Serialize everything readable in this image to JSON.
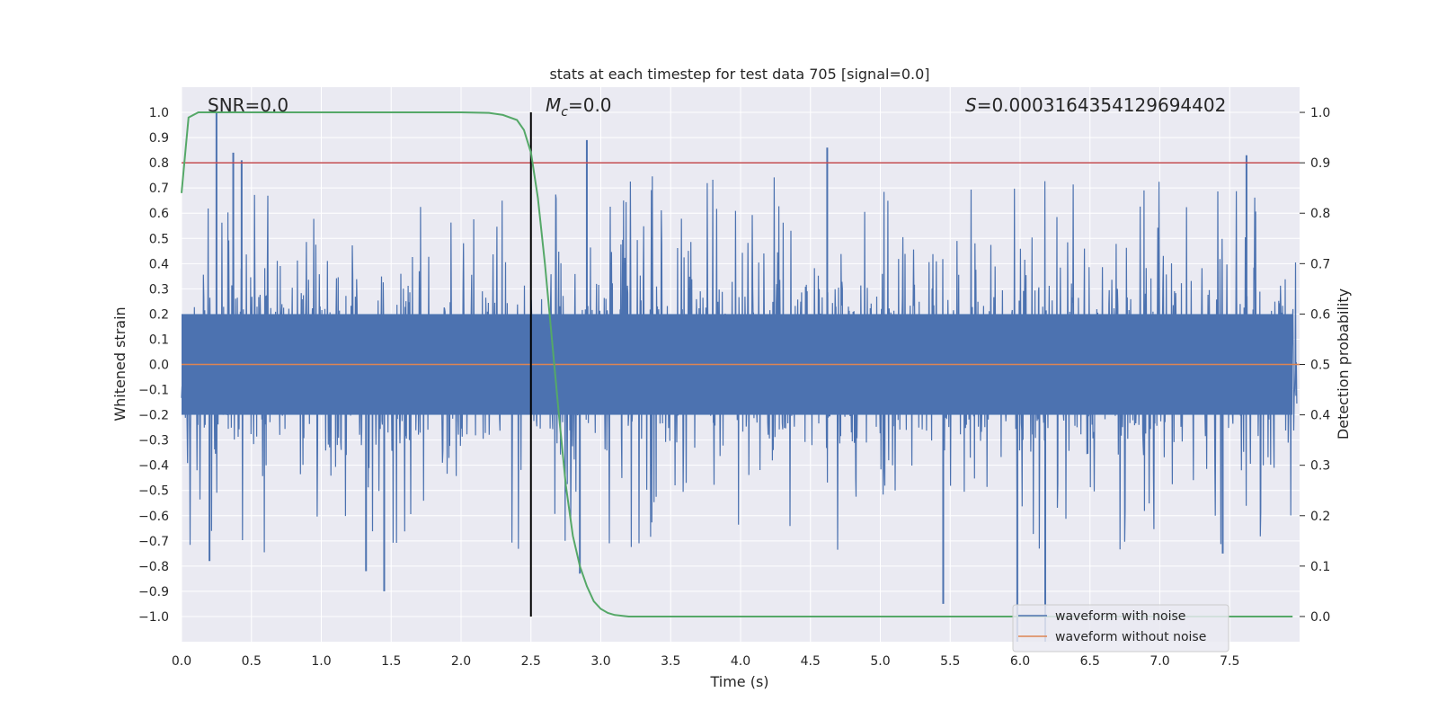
{
  "chart_data": {
    "type": "line",
    "title": "stats at each timestep for test data 705 [signal=0.0]",
    "xlabel": "Time (s)",
    "ylabel": "Whitened strain",
    "y2label": "Detection probability",
    "xlim": [
      0.0,
      8.0
    ],
    "ylim": [
      -1.1,
      1.1
    ],
    "y2lim": [
      -0.05,
      1.05
    ],
    "xticks": [
      "0.0",
      "0.5",
      "1.0",
      "1.5",
      "2.0",
      "2.5",
      "3.0",
      "3.5",
      "4.0",
      "4.5",
      "5.0",
      "5.5",
      "6.0",
      "6.5",
      "7.0",
      "7.5"
    ],
    "yticks": [
      "1.0",
      "0.9",
      "0.8",
      "0.7",
      "0.6",
      "0.5",
      "0.4",
      "0.3",
      "0.2",
      "0.1",
      "0.0",
      "−0.1",
      "−0.2",
      "−0.3",
      "−0.4",
      "−0.5",
      "−0.6",
      "−0.7",
      "−0.8",
      "−0.9",
      "−1.0"
    ],
    "y2ticks": [
      "1.0",
      "0.9",
      "0.8",
      "0.7",
      "0.6",
      "0.5",
      "0.4",
      "0.3",
      "0.2",
      "0.1",
      "0.0"
    ],
    "annotations": {
      "snr": "SNR=0.0",
      "mc_symbol": "M",
      "mc_sub": "c",
      "mc_value": "=0.0",
      "s_symbol": "S",
      "s_value": "=0.0003164354129694402"
    },
    "legend": {
      "position": "lower-right",
      "entries": [
        {
          "label": "waveform with noise",
          "color": "#4c72b0"
        },
        {
          "label": "waveform without noise",
          "color": "#dd8452"
        }
      ]
    },
    "series": [
      {
        "name": "waveform with noise",
        "color": "#4c72b0",
        "description": "whitened noisy strain, roughly +/-0.2 to +/-0.5 envelope",
        "peaks": [
          {
            "t": 0.25,
            "v": 1.0
          },
          {
            "t": 0.37,
            "v": 0.84
          },
          {
            "t": 0.43,
            "v": 0.81
          },
          {
            "t": 2.9,
            "v": 0.89
          },
          {
            "t": 4.62,
            "v": 0.86
          },
          {
            "t": 7.62,
            "v": 0.83
          },
          {
            "t": 0.2,
            "v": -0.78
          },
          {
            "t": 1.45,
            "v": -0.9
          },
          {
            "t": 5.45,
            "v": -0.95
          },
          {
            "t": 5.98,
            "v": -1.1
          },
          {
            "t": 6.18,
            "v": -1.1
          },
          {
            "t": 1.32,
            "v": -0.82
          },
          {
            "t": 2.85,
            "v": -0.83
          },
          {
            "t": 7.45,
            "v": -0.75
          }
        ]
      },
      {
        "name": "waveform without noise",
        "color": "#dd8452",
        "x": [
          0.0,
          8.0
        ],
        "values": [
          0.0,
          0.0
        ]
      },
      {
        "name": "detection probability",
        "axis": "right",
        "color": "#55a868",
        "x": [
          0.0,
          0.05,
          0.12,
          0.3,
          1.0,
          2.0,
          2.2,
          2.3,
          2.4,
          2.45,
          2.5,
          2.55,
          2.6,
          2.65,
          2.7,
          2.75,
          2.8,
          2.85,
          2.9,
          2.95,
          3.0,
          3.05,
          3.1,
          3.2,
          7.95
        ],
        "values": [
          0.84,
          0.99,
          1.0,
          1.0,
          1.0,
          1.0,
          0.999,
          0.995,
          0.985,
          0.965,
          0.92,
          0.83,
          0.7,
          0.55,
          0.4,
          0.26,
          0.16,
          0.1,
          0.06,
          0.03,
          0.015,
          0.007,
          0.003,
          0.0,
          0.0
        ]
      }
    ],
    "hlines": [
      {
        "axis": "left",
        "value": 0.8,
        "color": "#c44e52"
      }
    ],
    "vlines": [
      {
        "axis": "left",
        "value": 2.5,
        "from": -1.0,
        "to": 1.0,
        "color": "#000000"
      }
    ]
  }
}
